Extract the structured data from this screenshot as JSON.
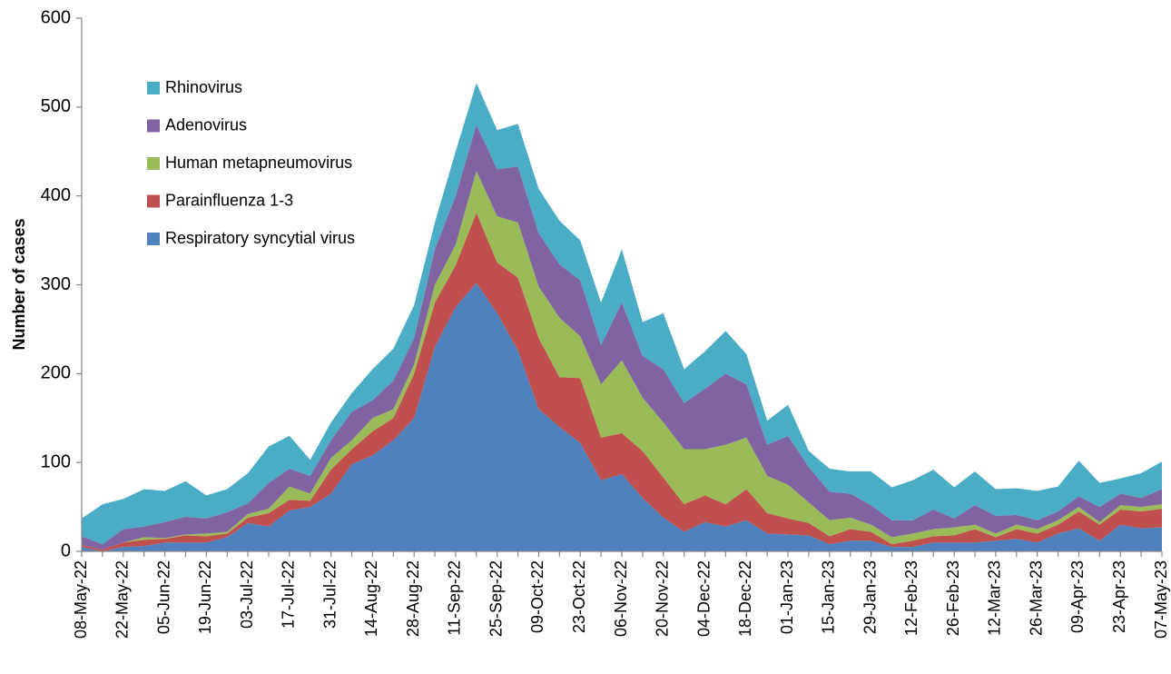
{
  "chart_data": {
    "type": "stacked_area",
    "y_label": "Number of cases",
    "legend": "upper left",
    "grid": false,
    "ylim": [
      0,
      600
    ],
    "yticks": [
      0,
      100,
      200,
      300,
      400,
      500,
      600
    ],
    "categories": [
      "08-May-22",
      null,
      "22-May-22",
      null,
      "05-Jun-22",
      null,
      "19-Jun-22",
      null,
      "03-Jul-22",
      null,
      "17-Jul-22",
      null,
      "31-Jul-22",
      null,
      "14-Aug-22",
      null,
      "28-Aug-22",
      null,
      "11-Sep-22",
      null,
      "25-Sep-22",
      null,
      "09-Oct-22",
      null,
      "23-Oct-22",
      null,
      "06-Nov-22",
      null,
      "20-Nov-22",
      null,
      "04-Dec-22",
      null,
      "18-Dec-22",
      null,
      "01-Jan-23",
      null,
      "15-Jan-23",
      null,
      "29-Jan-23",
      null,
      "12-Feb-23",
      null,
      "26-Feb-23",
      null,
      "12-Mar-23",
      null,
      "26-Mar-23",
      null,
      "09-Apr-23",
      null,
      "23-Apr-23",
      null,
      "07-May-23"
    ],
    "series": [
      {
        "name": "Respiratory syncytial virus",
        "color": "#4f81bd",
        "values": [
          5,
          0,
          5,
          6,
          10,
          10,
          10,
          16,
          32,
          28,
          46,
          50,
          65,
          98,
          108,
          125,
          150,
          230,
          275,
          302,
          268,
          226,
          160,
          140,
          122,
          80,
          87,
          60,
          38,
          22,
          33,
          28,
          35,
          20,
          19,
          18,
          8,
          12,
          12,
          5,
          5,
          10,
          10,
          10,
          12,
          14,
          10,
          20,
          26,
          12,
          30,
          26,
          27
        ]
      },
      {
        "name": "Parainfluenza 1-3",
        "color": "#c0504d",
        "values": [
          2,
          2,
          5,
          7,
          4,
          8,
          7,
          4,
          6,
          15,
          12,
          7,
          27,
          17,
          27,
          25,
          50,
          50,
          47,
          79,
          57,
          82,
          80,
          56,
          73,
          48,
          46,
          53,
          45,
          31,
          30,
          25,
          35,
          23,
          18,
          14,
          9,
          13,
          10,
          3,
          7,
          7,
          8,
          15,
          4,
          11,
          10,
          10,
          19,
          18,
          17,
          19,
          21
        ]
      },
      {
        "name": "Human metapneumovirus",
        "color": "#9bbb59",
        "values": [
          0,
          0,
          0,
          3,
          1,
          1,
          3,
          2,
          4,
          5,
          15,
          8,
          13,
          10,
          15,
          10,
          10,
          20,
          23,
          47,
          52,
          62,
          58,
          67,
          47,
          60,
          82,
          60,
          62,
          62,
          52,
          67,
          58,
          42,
          38,
          23,
          18,
          13,
          8,
          8,
          8,
          8,
          9,
          5,
          4,
          5,
          5,
          5,
          5,
          3,
          5,
          5,
          5
        ]
      },
      {
        "name": "Adenovirus",
        "color": "#8064a2",
        "values": [
          10,
          6,
          15,
          12,
          18,
          20,
          17,
          22,
          12,
          29,
          20,
          20,
          20,
          32,
          20,
          32,
          30,
          40,
          55,
          52,
          53,
          63,
          60,
          60,
          63,
          44,
          65,
          47,
          60,
          52,
          68,
          80,
          60,
          35,
          55,
          40,
          32,
          27,
          22,
          19,
          15,
          22,
          10,
          22,
          20,
          11,
          10,
          10,
          12,
          17,
          13,
          10,
          17
        ]
      },
      {
        "name": "Rhinovirus",
        "color": "#4bacc6",
        "values": [
          20,
          45,
          34,
          42,
          35,
          40,
          26,
          26,
          34,
          41,
          37,
          18,
          20,
          21,
          35,
          36,
          37,
          30,
          50,
          47,
          44,
          48,
          50,
          49,
          45,
          48,
          60,
          38,
          63,
          38,
          42,
          48,
          34,
          27,
          35,
          18,
          26,
          25,
          38,
          37,
          45,
          45,
          35,
          38,
          30,
          30,
          33,
          28,
          40,
          27,
          17,
          28,
          31
        ]
      }
    ]
  }
}
